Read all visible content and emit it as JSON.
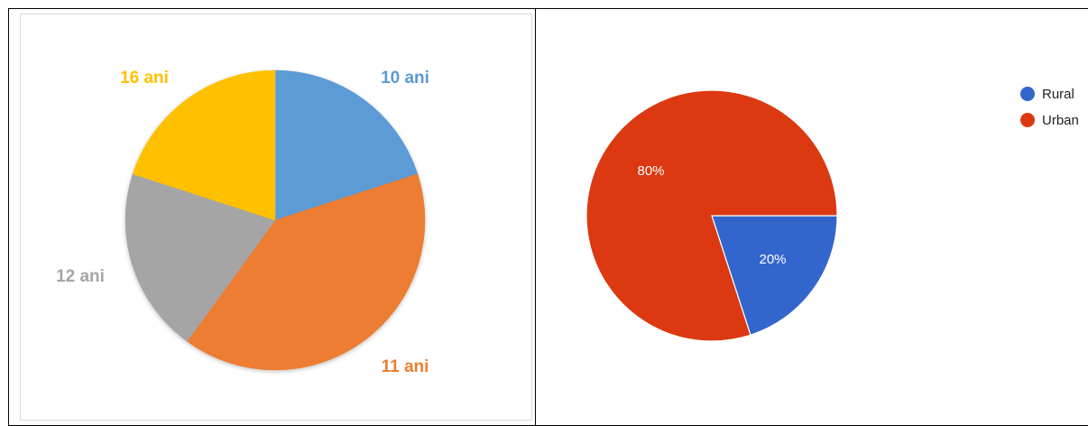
{
  "chart_data": [
    {
      "type": "pie",
      "categories": [
        "10 ani",
        "11 ani",
        "12 ani",
        "16 ani"
      ],
      "values": [
        20,
        40,
        20,
        20
      ],
      "colors": [
        "#5b9bd5",
        "#ed7d31",
        "#a5a5a5",
        "#ffc000"
      ],
      "labels": [
        "10 ani",
        "11 ani",
        "12 ani",
        "16 ani"
      ],
      "start_angle_deg": 0,
      "direction": "clockwise",
      "title": ""
    },
    {
      "type": "pie",
      "categories": [
        "Rural",
        "Urban"
      ],
      "values": [
        20,
        80
      ],
      "colors": [
        "#3366cc",
        "#dc3912"
      ],
      "data_labels": [
        "20%",
        "80%"
      ],
      "start_angle_deg": 90,
      "direction": "clockwise",
      "legend": {
        "position": "right",
        "entries": [
          "Rural",
          "Urban"
        ]
      },
      "title": ""
    }
  ]
}
